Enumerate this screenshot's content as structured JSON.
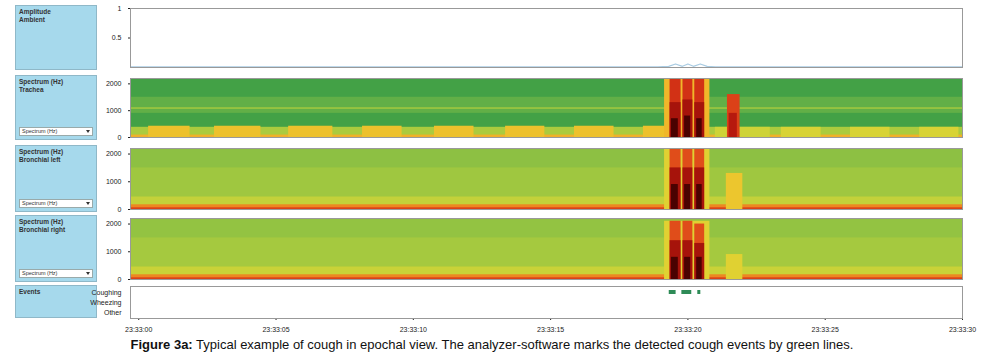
{
  "caption": {
    "label": "Figure 3a:",
    "text": "Typical example of cough in epochal view. The analyzer-software marks the detected cough events by green lines."
  },
  "chart_data": [
    {
      "type": "line",
      "title": "Amplitude",
      "subtitle": "Ambient",
      "x": [
        -0.3,
        18.9,
        19.3,
        19.55,
        19.8,
        20.0,
        20.2,
        20.45,
        20.7,
        21.0,
        30.0
      ],
      "values": [
        0.01,
        0.01,
        0.02,
        0.06,
        0.02,
        0.06,
        0.02,
        0.06,
        0.02,
        0.01,
        0.01
      ],
      "color": "#a9cce3",
      "xlim": [
        -0.3,
        30.0
      ],
      "ylim": [
        0,
        1
      ],
      "yticks": [
        0.5,
        1
      ],
      "tick_labels": "y"
    },
    {
      "type": "heatmap",
      "title": "Spectrum (Hz)",
      "subtitle": "Trachea",
      "dropdown": "Spectrum (Hz)",
      "xlim": [
        -0.3,
        30.0
      ],
      "ylim": [
        0,
        2200
      ],
      "yticks": [
        0,
        1000,
        2000
      ],
      "zlim": [
        0,
        9
      ],
      "tick_labels": "y",
      "cells": [
        [
          -0.3,
          30.0,
          0,
          2200,
          1
        ],
        [
          -0.3,
          30.0,
          900,
          1500,
          1.6
        ],
        [
          -0.3,
          30.0,
          1050,
          1110,
          2.6
        ],
        [
          -0.3,
          30.0,
          0,
          380,
          2.8
        ],
        [
          -0.3,
          30.0,
          0,
          90,
          4.6
        ],
        [
          0.36,
          1.87,
          0,
          420,
          4.3
        ],
        [
          2.76,
          4.45,
          0,
          420,
          4.3
        ],
        [
          5.46,
          7.07,
          0,
          420,
          4.3
        ],
        [
          8.15,
          9.59,
          0,
          420,
          4.3
        ],
        [
          10.77,
          12.21,
          0,
          420,
          4.3
        ],
        [
          13.36,
          14.79,
          0,
          420,
          4.3
        ],
        [
          15.87,
          17.31,
          0,
          420,
          4.3
        ],
        [
          18.38,
          19.17,
          0,
          420,
          4.3
        ],
        [
          21.0,
          23.0,
          0,
          380,
          3.4
        ],
        [
          23.4,
          24.85,
          0,
          380,
          3.6
        ],
        [
          25.92,
          27.36,
          0,
          380,
          3.6
        ],
        [
          28.44,
          29.87,
          0,
          380,
          3.6
        ],
        [
          19.15,
          20.8,
          0,
          2200,
          4.5
        ],
        [
          19.35,
          19.75,
          0,
          2200,
          6.5
        ],
        [
          19.35,
          19.75,
          0,
          1300,
          7.5
        ],
        [
          19.4,
          19.65,
          0,
          700,
          8.8
        ],
        [
          19.82,
          20.18,
          0,
          2200,
          6.5
        ],
        [
          19.82,
          20.18,
          0,
          1400,
          7.5
        ],
        [
          19.88,
          20.1,
          0,
          800,
          8.8
        ],
        [
          20.25,
          20.61,
          0,
          2200,
          6.5
        ],
        [
          20.25,
          20.61,
          0,
          1300,
          7.5
        ],
        [
          20.32,
          20.52,
          0,
          700,
          8.8
        ],
        [
          21.44,
          21.9,
          0,
          1600,
          6.2
        ],
        [
          21.5,
          21.8,
          0,
          900,
          7.2
        ]
      ]
    },
    {
      "type": "heatmap",
      "title": "Spectrum (Hz)",
      "subtitle": "Bronchial left",
      "dropdown": "Spectrum (Hz)",
      "xlim": [
        -0.3,
        30.0
      ],
      "ylim": [
        0,
        2200
      ],
      "yticks": [
        0,
        1000,
        2000
      ],
      "zlim": [
        0,
        9
      ],
      "tick_labels": "y",
      "cells": [
        [
          -0.3,
          30.0,
          0,
          2200,
          2.6
        ],
        [
          -0.3,
          30.0,
          1500,
          2200,
          2.3
        ],
        [
          -0.3,
          30.0,
          0,
          450,
          3.2
        ],
        [
          -0.3,
          30.0,
          0,
          170,
          5.2
        ],
        [
          -0.3,
          30.0,
          0,
          60,
          6.2
        ],
        [
          19.15,
          20.8,
          0,
          2200,
          3.8
        ],
        [
          19.35,
          19.75,
          0,
          2200,
          6
        ],
        [
          19.35,
          19.75,
          0,
          1500,
          7.5
        ],
        [
          19.4,
          19.65,
          0,
          900,
          8.8
        ],
        [
          19.82,
          20.18,
          0,
          2200,
          6
        ],
        [
          19.82,
          20.18,
          0,
          1500,
          7.5
        ],
        [
          19.88,
          20.1,
          0,
          900,
          8.8
        ],
        [
          20.25,
          20.61,
          0,
          2200,
          6
        ],
        [
          20.25,
          20.61,
          0,
          1500,
          7.5
        ],
        [
          20.32,
          20.52,
          0,
          900,
          8.8
        ],
        [
          21.4,
          22.0,
          0,
          1300,
          4.2
        ]
      ]
    },
    {
      "type": "heatmap",
      "title": "Spectrum (Hz)",
      "subtitle": "Bronchial right",
      "dropdown": "Spectrum (Hz)",
      "xlim": [
        -0.3,
        30.0
      ],
      "ylim": [
        0,
        2200
      ],
      "yticks": [
        0,
        1000,
        2000
      ],
      "zlim": [
        0,
        9
      ],
      "tick_labels": "y",
      "cells": [
        [
          -0.3,
          30.0,
          0,
          2200,
          2.7
        ],
        [
          -0.3,
          30.0,
          1500,
          2200,
          2.4
        ],
        [
          -0.3,
          30.0,
          0,
          450,
          3.3
        ],
        [
          -0.3,
          30.0,
          0,
          170,
          5.2
        ],
        [
          -0.3,
          30.0,
          0,
          60,
          6.2
        ],
        [
          19.15,
          20.8,
          0,
          2100,
          3.8
        ],
        [
          19.35,
          19.75,
          0,
          2100,
          6
        ],
        [
          19.35,
          19.75,
          0,
          1400,
          7.5
        ],
        [
          19.4,
          19.65,
          0,
          800,
          8.8
        ],
        [
          19.82,
          20.18,
          0,
          2100,
          6
        ],
        [
          19.82,
          20.18,
          0,
          1400,
          7.5
        ],
        [
          19.88,
          20.1,
          0,
          800,
          8.8
        ],
        [
          20.25,
          20.61,
          0,
          2000,
          6
        ],
        [
          20.25,
          20.61,
          0,
          1300,
          7.5
        ],
        [
          20.32,
          20.52,
          0,
          800,
          8.8
        ],
        [
          21.4,
          22.0,
          0,
          900,
          3.8
        ]
      ]
    },
    {
      "type": "events",
      "title": "Events",
      "categories": [
        "Coughing",
        "Wheezing",
        "Other"
      ],
      "events": [
        {
          "category": "Coughing",
          "start": 19.32,
          "end": 19.57
        },
        {
          "category": "Coughing",
          "start": 19.78,
          "end": 20.14
        },
        {
          "category": "Coughing",
          "start": 20.36,
          "end": 20.47
        }
      ],
      "color": "#2e8b57",
      "xlim": [
        -0.3,
        30.0
      ],
      "xticks": [
        {
          "value": 0,
          "label": "23:33:00"
        },
        {
          "value": 5,
          "label": "23:33:05"
        },
        {
          "value": 10,
          "label": "23:33:10"
        },
        {
          "value": 15,
          "label": "23:33:15"
        },
        {
          "value": 20,
          "label": "23:33:20"
        },
        {
          "value": 25,
          "label": "23:33:25"
        },
        {
          "value": 30,
          "label": "23:33:30"
        }
      ]
    }
  ]
}
